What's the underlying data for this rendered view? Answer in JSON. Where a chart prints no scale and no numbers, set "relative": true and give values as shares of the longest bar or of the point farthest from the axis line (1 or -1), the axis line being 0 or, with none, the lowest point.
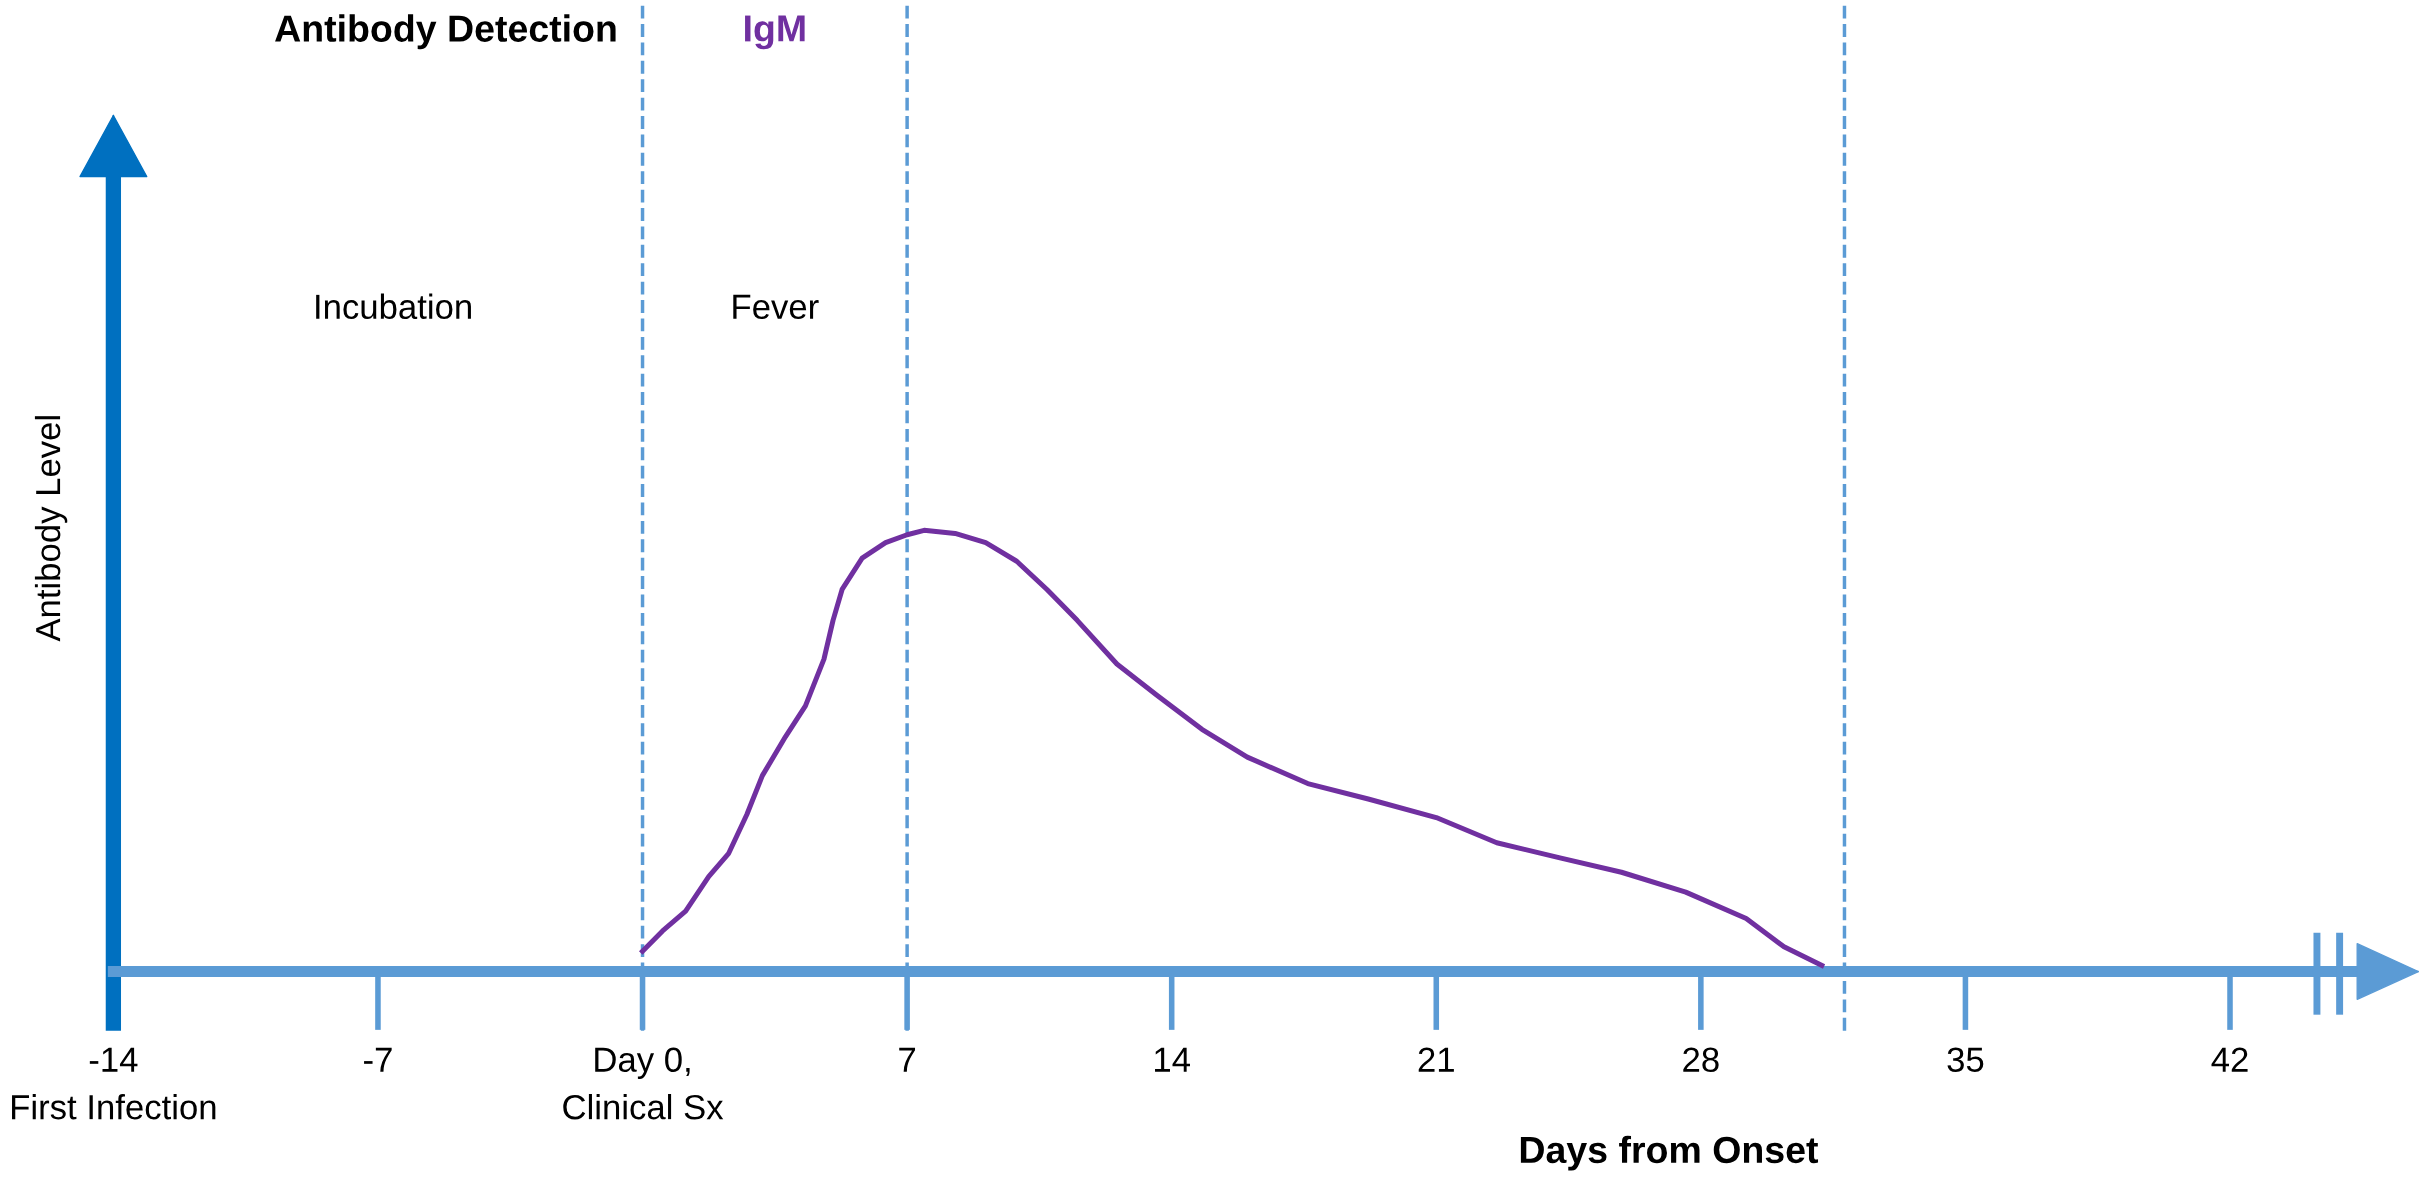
{
  "chart_data": {
    "type": "line",
    "relative": true,
    "xlabel": "Days from Onset",
    "ylabel": "Antibody Level",
    "annotations": [
      "Antibody Detection",
      "Incubation",
      "Fever"
    ],
    "xlim": [
      -14,
      45.8
    ],
    "xticks": [
      {
        "value": -14,
        "label": "-14\nFirst Infection"
      },
      -7,
      {
        "value": 0,
        "label": "Day 0,\nClinical Sx"
      },
      7,
      14,
      21,
      28,
      35,
      42
    ],
    "series": [
      {
        "name": "IgM",
        "color": "#7030a0",
        "x": [
          0,
          0.53,
          1.14,
          1.75,
          2.28,
          2.76,
          3.17,
          3.78,
          4.31,
          4.8,
          5.04,
          5.28,
          5.81,
          6.43,
          7.0,
          7.45,
          8.27,
          9.08,
          9.9,
          10.7,
          11.5,
          12.55,
          13.6,
          14.8,
          16.0,
          17.6,
          19.2,
          21.0,
          22.6,
          24.3,
          25.9,
          27.6,
          29.2,
          30.2,
          31.2
        ],
        "values": [
          0.046,
          0.092,
          0.137,
          0.215,
          0.268,
          0.356,
          0.444,
          0.532,
          0.602,
          0.708,
          0.796,
          0.866,
          0.937,
          0.972,
          0.99,
          1.0,
          0.993,
          0.972,
          0.93,
          0.866,
          0.796,
          0.697,
          0.627,
          0.549,
          0.486,
          0.426,
          0.391,
          0.349,
          0.292,
          0.257,
          0.225,
          0.18,
          0.12,
          0.056,
          0.014
        ]
      }
    ],
    "ref_lines": [
      {
        "axis": "x",
        "value": 0,
        "color": "#5b9bd5",
        "line_style": "dashed"
      },
      {
        "axis": "x",
        "value": 7,
        "color": "#5b9bd5",
        "line_style": "dashed"
      },
      {
        "axis": "x",
        "value": 31.8,
        "color": "#5b9bd5",
        "line_style": "dashed"
      }
    ],
    "grid": false,
    "legend": false,
    "marker": "none",
    "line_style": "solid"
  }
}
